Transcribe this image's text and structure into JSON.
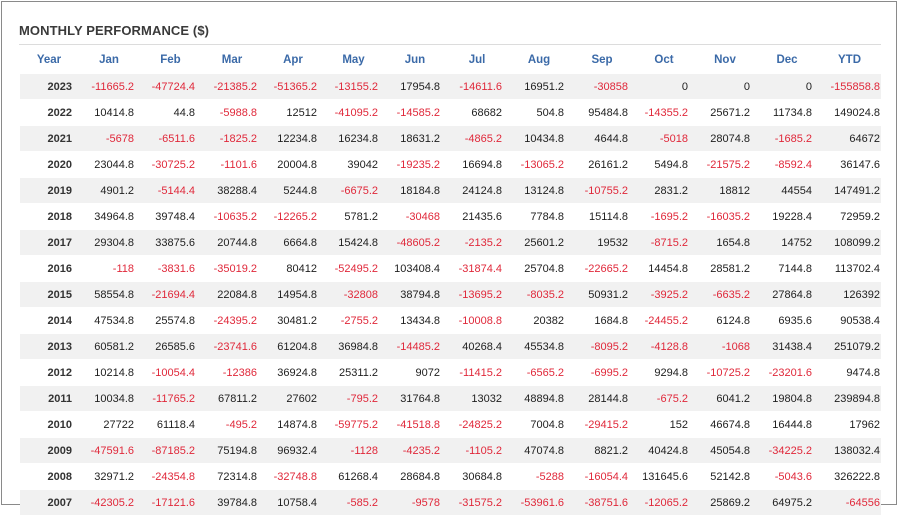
{
  "title": "MONTHLY PERFORMANCE ($)",
  "colors": {
    "negative": "#e0283a",
    "header": "#3b6aa8",
    "stripe": "#f1f1f1"
  },
  "columns": [
    "Year",
    "Jan",
    "Feb",
    "Mar",
    "Apr",
    "May",
    "Jun",
    "Jul",
    "Aug",
    "Sep",
    "Oct",
    "Nov",
    "Dec",
    "YTD"
  ],
  "rows": [
    [
      "2023",
      "-11665.2",
      "-47724.4",
      "-21385.2",
      "-51365.2",
      "-13155.2",
      "17954.8",
      "-14611.6",
      "16951.2",
      "-30858",
      "0",
      "0",
      "0",
      "-155858.8"
    ],
    [
      "2022",
      "10414.8",
      "44.8",
      "-5988.8",
      "12512",
      "-41095.2",
      "-14585.2",
      "68682",
      "504.8",
      "95484.8",
      "-14355.2",
      "25671.2",
      "11734.8",
      "149024.8"
    ],
    [
      "2021",
      "-5678",
      "-6511.6",
      "-1825.2",
      "12234.8",
      "16234.8",
      "18631.2",
      "-4865.2",
      "10434.8",
      "4644.8",
      "-5018",
      "28074.8",
      "-1685.2",
      "64672"
    ],
    [
      "2020",
      "23044.8",
      "-30725.2",
      "-1101.6",
      "20004.8",
      "39042",
      "-19235.2",
      "16694.8",
      "-13065.2",
      "26161.2",
      "5494.8",
      "-21575.2",
      "-8592.4",
      "36147.6"
    ],
    [
      "2019",
      "4901.2",
      "-5144.4",
      "38288.4",
      "5244.8",
      "-6675.2",
      "18184.8",
      "24124.8",
      "13124.8",
      "-10755.2",
      "2831.2",
      "18812",
      "44554",
      "147491.2"
    ],
    [
      "2018",
      "34964.8",
      "39748.4",
      "-10635.2",
      "-12265.2",
      "5781.2",
      "-30468",
      "21435.6",
      "7784.8",
      "15114.8",
      "-1695.2",
      "-16035.2",
      "19228.4",
      "72959.2"
    ],
    [
      "2017",
      "29304.8",
      "33875.6",
      "20744.8",
      "6664.8",
      "15424.8",
      "-48605.2",
      "-2135.2",
      "25601.2",
      "19532",
      "-8715.2",
      "1654.8",
      "14752",
      "108099.2"
    ],
    [
      "2016",
      "-118",
      "-3831.6",
      "-35019.2",
      "80412",
      "-52495.2",
      "103408.4",
      "-31874.4",
      "25704.8",
      "-22665.2",
      "14454.8",
      "28581.2",
      "7144.8",
      "113702.4"
    ],
    [
      "2015",
      "58554.8",
      "-21694.4",
      "22084.8",
      "14954.8",
      "-32808",
      "38794.8",
      "-13695.2",
      "-8035.2",
      "50931.2",
      "-3925.2",
      "-6635.2",
      "27864.8",
      "126392"
    ],
    [
      "2014",
      "47534.8",
      "25574.8",
      "-24395.2",
      "30481.2",
      "-2755.2",
      "13434.8",
      "-10008.8",
      "20382",
      "1684.8",
      "-24455.2",
      "6124.8",
      "6935.6",
      "90538.4"
    ],
    [
      "2013",
      "60581.2",
      "26585.6",
      "-23741.6",
      "61204.8",
      "36984.8",
      "-14485.2",
      "40268.4",
      "45534.8",
      "-8095.2",
      "-4128.8",
      "-1068",
      "31438.4",
      "251079.2"
    ],
    [
      "2012",
      "10214.8",
      "-10054.4",
      "-12386",
      "36924.8",
      "25311.2",
      "9072",
      "-11415.2",
      "-6565.2",
      "-6995.2",
      "9294.8",
      "-10725.2",
      "-23201.6",
      "9474.8"
    ],
    [
      "2011",
      "10034.8",
      "-11765.2",
      "67811.2",
      "27602",
      "-795.2",
      "31764.8",
      "13032",
      "48894.8",
      "28144.8",
      "-675.2",
      "6041.2",
      "19804.8",
      "239894.8"
    ],
    [
      "2010",
      "27722",
      "61118.4",
      "-495.2",
      "14874.8",
      "-59775.2",
      "-41518.8",
      "-24825.2",
      "7004.8",
      "-29415.2",
      "152",
      "46674.8",
      "16444.8",
      "17962"
    ],
    [
      "2009",
      "-47591.6",
      "-87185.2",
      "75194.8",
      "96932.4",
      "-1128",
      "-4235.2",
      "-1105.2",
      "47074.8",
      "8821.2",
      "40424.8",
      "45054.8",
      "-34225.2",
      "138032.4"
    ],
    [
      "2008",
      "32971.2",
      "-24354.8",
      "72314.8",
      "-32748.8",
      "61268.4",
      "28684.8",
      "30684.8",
      "-5288",
      "-16054.4",
      "131645.6",
      "52142.8",
      "-5043.6",
      "326222.8"
    ],
    [
      "2007",
      "-42305.2",
      "-17121.6",
      "39784.8",
      "10758.4",
      "-585.2",
      "-9578",
      "-31575.2",
      "-53961.6",
      "-38751.6",
      "-12065.2",
      "25869.2",
      "64975.2",
      "-64556"
    ]
  ]
}
